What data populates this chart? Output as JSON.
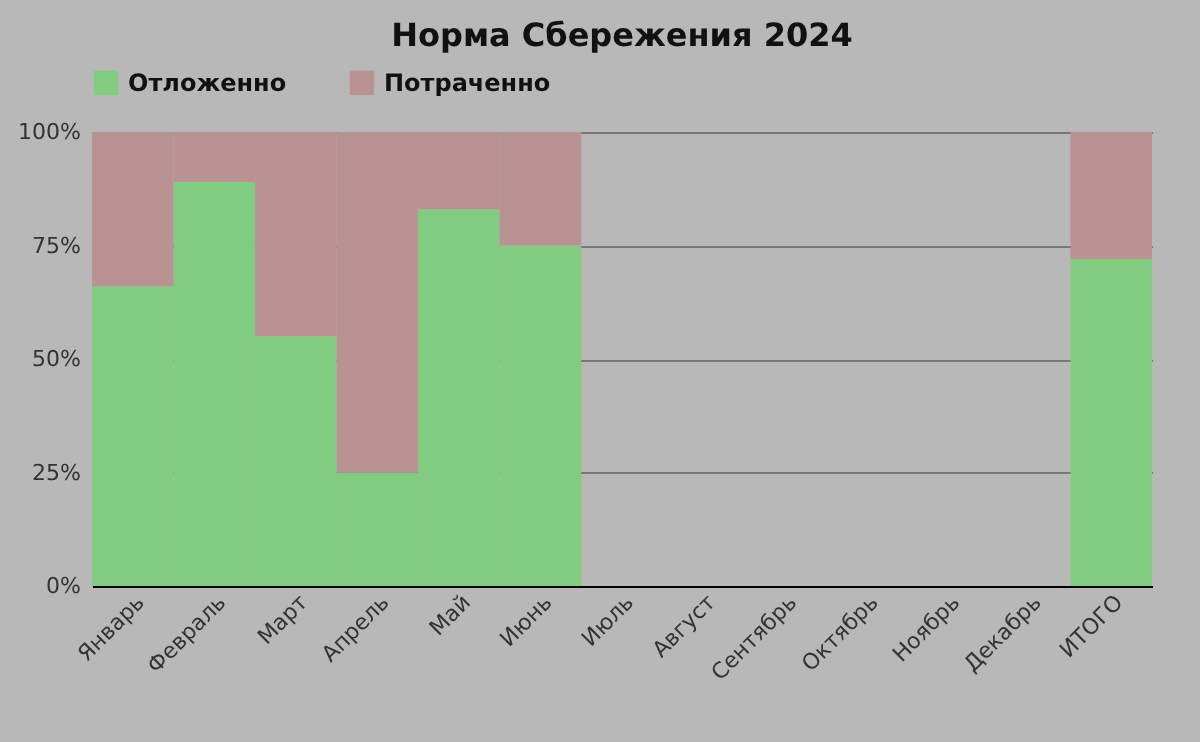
{
  "chart_data": {
    "type": "bar",
    "title": "Норма Сбережения 2024",
    "stacked": true,
    "categories": [
      "Январь",
      "Февраль",
      "Март",
      "Апрель",
      "Май",
      "Июнь",
      "Июль",
      "Август",
      "Сентябрь",
      "Октябрь",
      "Ноябрь",
      "Декабрь",
      "ИТОГО"
    ],
    "series": [
      {
        "name": "Отложенно",
        "color": "#82cc82",
        "values": [
          66,
          89,
          55,
          25,
          83,
          75,
          0,
          0,
          0,
          0,
          0,
          0,
          72
        ]
      },
      {
        "name": "Потраченно",
        "color": "#b99393",
        "values": [
          34,
          11,
          45,
          75,
          17,
          25,
          0,
          0,
          0,
          0,
          0,
          0,
          28
        ]
      }
    ],
    "ylim": [
      0,
      100
    ],
    "yticks": [
      {
        "value": 0,
        "label": "0%"
      },
      {
        "value": 25,
        "label": "25%"
      },
      {
        "value": 50,
        "label": "50%"
      },
      {
        "value": 75,
        "label": "75%"
      },
      {
        "value": 100,
        "label": "100%"
      }
    ],
    "grid": "y",
    "legend": "top"
  }
}
